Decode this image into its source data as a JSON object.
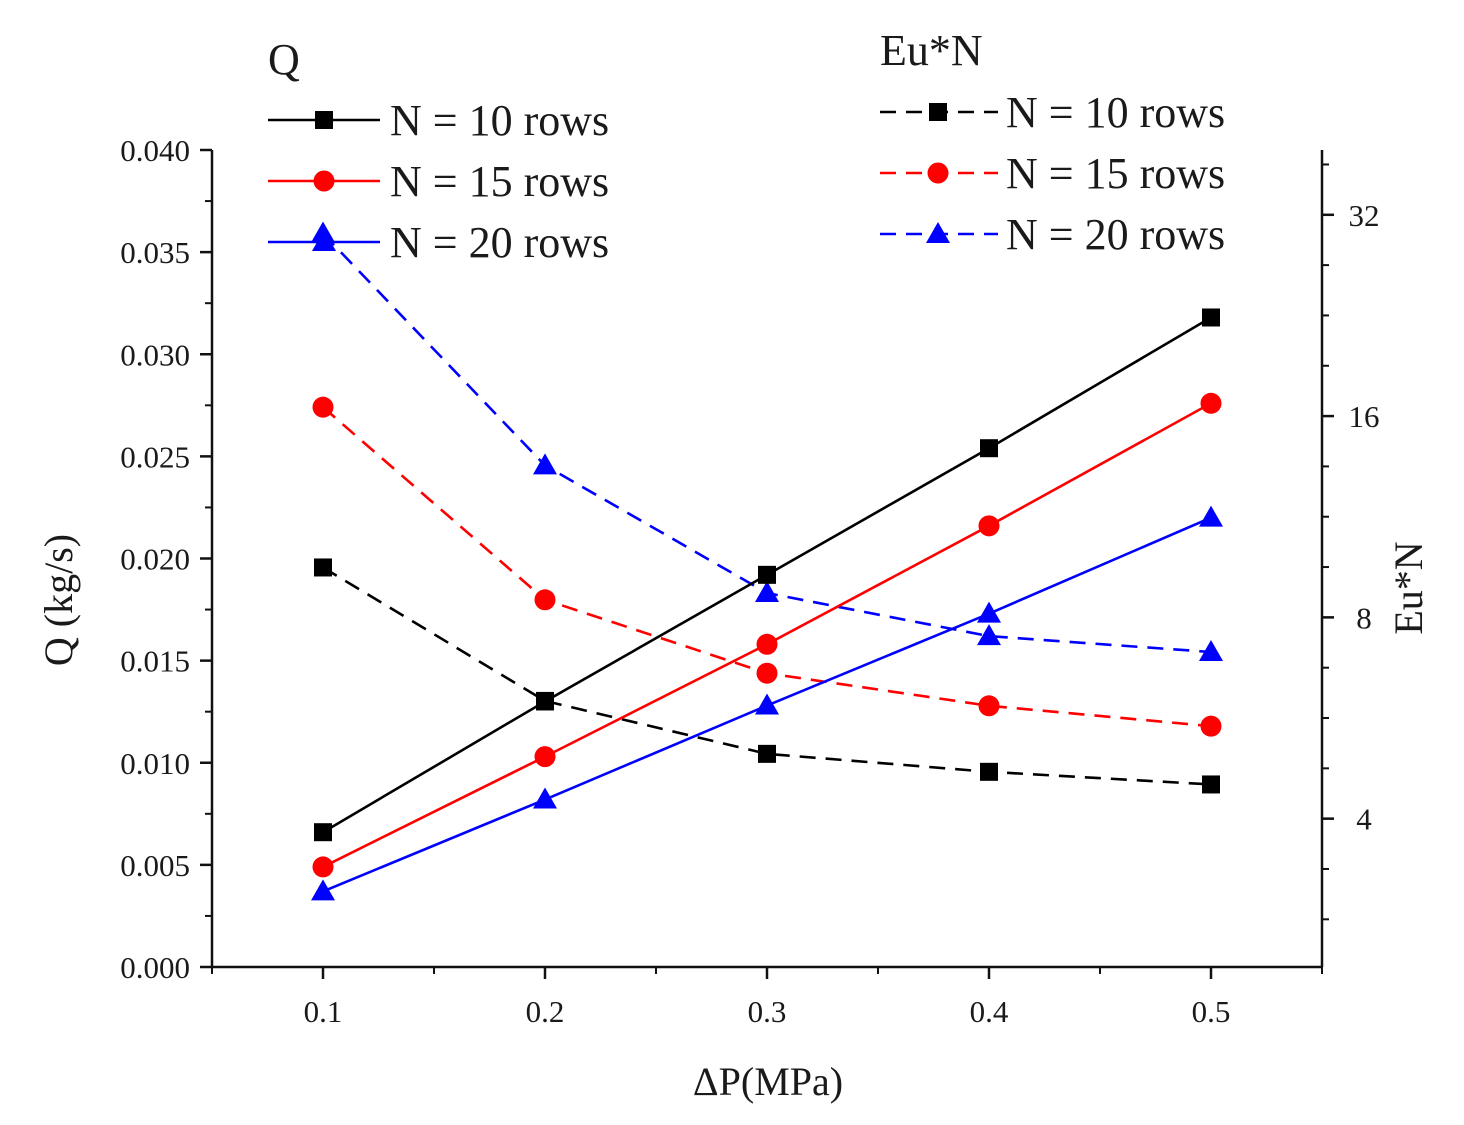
{
  "chart_data": {
    "type": "line",
    "xlabel": "ΔP(MPa)",
    "ylabel": "Q (kg/s)",
    "y2label": "Eu*N",
    "x": [
      0.1,
      0.2,
      0.3,
      0.4,
      0.5
    ],
    "x_tick_labels": [
      "0.1",
      "0.2",
      "0.3",
      "0.4",
      "0.5"
    ],
    "xlim": [
      0.05,
      0.55
    ],
    "ylim": [
      0,
      0.04
    ],
    "y_tick_labels": [
      "0.000",
      "0.005",
      "0.010",
      "0.015",
      "0.020",
      "0.025",
      "0.030",
      "0.035",
      "0.040"
    ],
    "y2_scale": "log2",
    "y2lim": [
      2.4,
      40
    ],
    "y2_tick_labels": [
      "4",
      "8",
      "16",
      "32"
    ],
    "legend_left_title": "Q",
    "legend_right_title": "Eu*N",
    "series": [
      {
        "name": "N = 10 rows",
        "axis": "left",
        "style": "solid",
        "marker": "square",
        "color": "#000000",
        "values": [
          0.0066,
          0.013,
          0.0192,
          0.0254,
          0.0318
        ]
      },
      {
        "name": "N = 15 rows",
        "axis": "left",
        "style": "solid",
        "marker": "circle",
        "color": "#ff0000",
        "values": [
          0.0049,
          0.0103,
          0.0158,
          0.0216,
          0.0276
        ]
      },
      {
        "name": "N = 20 rows",
        "axis": "left",
        "style": "solid",
        "marker": "triangle",
        "color": "#0000ff",
        "values": [
          0.0037,
          0.0082,
          0.0128,
          0.0173,
          0.022
        ]
      },
      {
        "name": "N = 10 rows",
        "axis": "right",
        "style": "dash",
        "marker": "square",
        "color": "#000000",
        "values": [
          9.5,
          6.0,
          5.0,
          4.7,
          4.5
        ]
      },
      {
        "name": "N = 15 rows",
        "axis": "right",
        "style": "dash",
        "marker": "circle",
        "color": "#ff0000",
        "values": [
          16.5,
          8.5,
          6.6,
          5.9,
          5.5
        ]
      },
      {
        "name": "N = 20 rows",
        "axis": "right",
        "style": "dash",
        "marker": "triangle",
        "color": "#0000ff",
        "values": [
          30.0,
          13.5,
          8.7,
          7.5,
          7.1
        ]
      }
    ]
  }
}
